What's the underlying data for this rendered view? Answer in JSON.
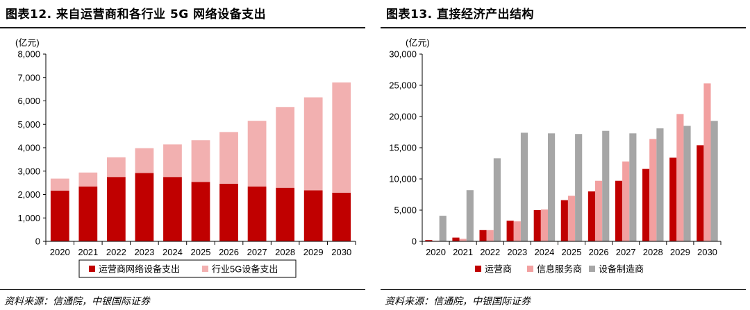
{
  "left": {
    "title": "图表12. 来自运营商和各行业 5G 网络设备支出",
    "source": "资料来源：信通院，中银国际证券",
    "chart_data": {
      "type": "bar",
      "stacked": true,
      "unit": "(亿元)",
      "categories": [
        "2020",
        "2021",
        "2022",
        "2023",
        "2024",
        "2025",
        "2026",
        "2027",
        "2028",
        "2029",
        "2030"
      ],
      "series": [
        {
          "name": "运营商网络设备支出",
          "color": "#c00000",
          "values": [
            2170,
            2340,
            2750,
            2920,
            2750,
            2540,
            2460,
            2340,
            2290,
            2180,
            2080
          ]
        },
        {
          "name": "行业5G设备支出",
          "color": "#f2b0b0",
          "values": [
            510,
            600,
            840,
            1060,
            1390,
            1780,
            2210,
            2810,
            3450,
            3970,
            4710
          ]
        }
      ],
      "ylim": [
        0,
        8000
      ],
      "yticks": [
        "0",
        "1,000",
        "2,000",
        "3,000",
        "4,000",
        "5,000",
        "6,000",
        "7,000",
        "8,000"
      ],
      "legend_position": "bottom"
    }
  },
  "right": {
    "title": "图表13. 直接经济产出结构",
    "source": "资料来源：信通院，中银国际证券",
    "chart_data": {
      "type": "bar",
      "stacked": false,
      "unit": "(亿元)",
      "categories": [
        "2020",
        "2021",
        "2022",
        "2023",
        "2024",
        "2025",
        "2026",
        "2027",
        "2028",
        "2029",
        "2030"
      ],
      "series": [
        {
          "name": "运营商",
          "color": "#c00000",
          "values": [
            200,
            600,
            1800,
            3300,
            5000,
            6600,
            8000,
            9700,
            11600,
            13400,
            15400
          ]
        },
        {
          "name": "信息服务商",
          "color": "#f2a0a0",
          "values": [
            100,
            400,
            1800,
            3200,
            5100,
            7300,
            9700,
            12800,
            16400,
            20400,
            25300
          ]
        },
        {
          "name": "设备制造商",
          "color": "#a6a6a6",
          "values": [
            4100,
            8200,
            13300,
            17400,
            17300,
            17200,
            17700,
            17300,
            18100,
            18500,
            19300
          ]
        }
      ],
      "ylim": [
        0,
        30000
      ],
      "yticks": [
        "0",
        "5,000",
        "10,000",
        "15,000",
        "20,000",
        "25,000",
        "30,000"
      ],
      "legend_position": "bottom"
    }
  }
}
